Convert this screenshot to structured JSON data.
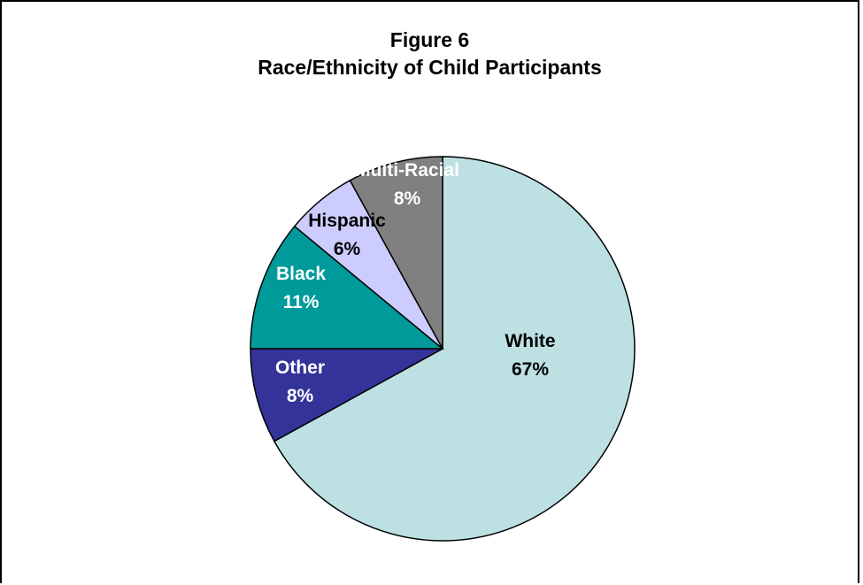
{
  "chart_data": {
    "type": "pie",
    "title": "Figure 6",
    "subtitle": "Race/Ethnicity of Child Participants",
    "start_angle_deg": 0,
    "direction": "clockwise",
    "slices": [
      {
        "name": "White",
        "value": 67,
        "percent_label": "67%",
        "color": "#bde0e3",
        "label_color": "#000000"
      },
      {
        "name": "Other",
        "value": 8,
        "percent_label": "8%",
        "color": "#33339a",
        "label_color": "#ffffff"
      },
      {
        "name": "Black",
        "value": 11,
        "percent_label": "11%",
        "color": "#009a9a",
        "label_color": "#ffffff"
      },
      {
        "name": "Hispanic",
        "value": 6,
        "percent_label": "6%",
        "color": "#ccccff",
        "label_color": "#000000"
      },
      {
        "name": "Multi-Racial",
        "value": 8,
        "percent_label": "8%",
        "color": "#808080",
        "label_color": "#ffffff"
      }
    ],
    "legend": "none"
  }
}
